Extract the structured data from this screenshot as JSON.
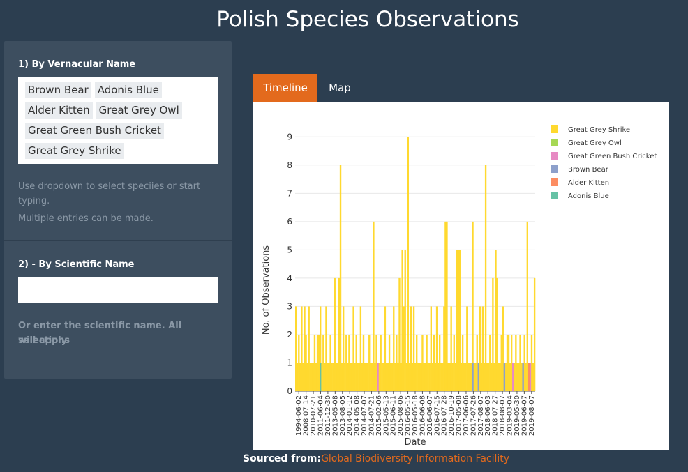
{
  "page": {
    "title": "Polish Species Observations"
  },
  "sidebar": {
    "section1_label": "1) By Vernacular Name",
    "selected_tags": [
      "Brown Bear",
      "Adonis Blue",
      "Alder Kitten",
      "Great Grey Owl",
      "Great Green Bush Cricket",
      "Great Grey Shrike"
    ],
    "help1_line1": "Use dropdown to select speciies or start",
    "help1_line2": "typing.",
    "help1_line3": "Multiple entries can be made.",
    "section2_label": "2) - By Scientific Name",
    "scientific_value": "",
    "help2_line1": "Or enter the scientific name. All selections",
    "help2_line2": "will apply."
  },
  "tabs": [
    {
      "label": "Timeline",
      "active": true
    },
    {
      "label": "Map",
      "active": false
    }
  ],
  "footer": {
    "label": "Sourced from:",
    "link": "Global Biodiversity Information Facility"
  },
  "chart_data": {
    "type": "bar",
    "stacked": true,
    "xlabel": "Date",
    "ylabel": "No. of Observations",
    "ylim": [
      0,
      9.5
    ],
    "yticks": [
      0,
      1,
      2,
      3,
      4,
      5,
      6,
      7,
      8,
      9
    ],
    "xticks": [
      "1994-06-02",
      "2008-07-14",
      "2010-07-21",
      "2011-06-04",
      "2011-12-30",
      "2013-05-08",
      "2013-08-05",
      "2014-01-12",
      "2014-05-08",
      "2014-07-07",
      "2014-07-21",
      "2015-02-06",
      "2015-05-13",
      "2015-06-11",
      "2015-08-06",
      "2016-05-15",
      "2016-05-18",
      "2016-06-08",
      "2016-06-07",
      "2016-07-15",
      "2016-07-28",
      "2016-10-19",
      "2017-05-08",
      "2017-06-06",
      "2017-07-26",
      "2017-08-07",
      "2018-06-03",
      "2018-07-27",
      "2018-08-07",
      "2019-03-04",
      "2019-05-30",
      "2019-06-07",
      "2019-08-07"
    ],
    "grid": true,
    "legend_position": "top-right",
    "series": [
      {
        "name": "Great Grey Shrike",
        "color": "#ffd92f",
        "values": [
          3,
          1,
          2,
          1,
          3,
          1,
          3,
          2,
          1,
          3,
          1,
          1,
          1,
          2,
          1,
          2,
          2,
          3,
          1,
          2,
          1,
          3,
          1,
          1,
          2,
          1,
          1,
          4,
          1,
          1,
          4,
          8,
          1,
          3,
          1,
          2,
          1,
          2,
          1,
          1,
          3,
          1,
          2,
          1,
          1,
          3,
          1,
          2,
          1,
          1,
          1,
          2,
          1,
          1,
          6,
          1,
          2,
          1,
          1,
          2,
          1,
          1,
          3,
          1,
          1,
          2,
          1,
          1,
          3,
          1,
          2,
          1,
          4,
          1,
          5,
          3,
          5,
          1,
          9,
          1,
          3,
          1,
          3,
          1,
          2,
          1,
          1,
          1,
          2,
          1,
          1,
          2,
          1,
          1,
          3,
          1,
          2,
          1,
          3,
          1,
          2,
          1,
          1,
          3,
          6,
          6,
          1,
          1,
          3,
          1,
          2,
          1,
          5,
          5,
          5,
          1,
          2,
          1,
          1,
          3,
          1,
          1,
          1,
          6,
          1,
          1,
          2,
          1,
          3,
          1,
          3,
          1,
          8,
          1,
          1,
          2,
          1,
          4,
          1,
          5,
          4,
          1,
          1,
          2,
          3,
          1,
          1,
          2,
          2,
          1,
          2,
          1,
          1,
          2,
          1,
          1,
          2,
          1,
          1,
          2,
          1,
          6,
          1,
          1,
          2,
          1,
          4
        ]
      },
      {
        "name": "Great Grey Owl",
        "color": "#a6d854",
        "values": []
      },
      {
        "name": "Great Green Bush Cricket",
        "color": "#e78ac3",
        "values": []
      },
      {
        "name": "Brown Bear",
        "color": "#8da0cb",
        "values": []
      },
      {
        "name": "Alder Kitten",
        "color": "#fc8d62",
        "values": []
      },
      {
        "name": "Adonis Blue",
        "color": "#66c2a5",
        "values": []
      }
    ]
  }
}
